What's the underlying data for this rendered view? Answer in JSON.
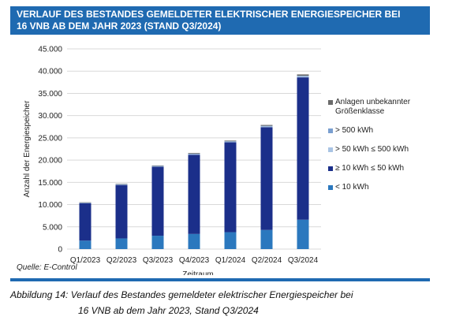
{
  "title_lines": [
    "VERLAUF DES BESTANDES GEMELDETER ELEKTRISCHER ENERGIESPEICHER BEI",
    "16 VNB AB DEM JAHR 2023 (STAND Q3/2024)"
  ],
  "source": "Quelle: E-Control",
  "caption_lines": [
    "Abbildung 14: Verlauf des Bestandes gemeldeter elektrischer Energiespeicher bei",
    "16 VNB ab dem Jahr 2023, Stand Q3/2024"
  ],
  "colors": {
    "title_bg": "#1f6ab1",
    "grid": "#d9d9d9"
  },
  "chart_data": {
    "type": "bar",
    "stacked": true,
    "xlabel": "Zeitraum",
    "ylabel": "Anzahl der Energiespeicher",
    "ylim": [
      0,
      45000
    ],
    "yticks": [
      0,
      5000,
      10000,
      15000,
      20000,
      25000,
      30000,
      35000,
      40000,
      45000
    ],
    "ytick_labels": [
      "0",
      "5.000",
      "10.000",
      "15.000",
      "20.000",
      "25.000",
      "30.000",
      "35.000",
      "40.000",
      "45.000"
    ],
    "categories": [
      "Q1/2023",
      "Q2/2023",
      "Q3/2023",
      "Q4/2023",
      "Q1/2024",
      "Q2/2024",
      "Q3/2024"
    ],
    "grid": true,
    "legend_position": "right",
    "series": [
      {
        "name": "< 10 kWh",
        "color": "#2b78be",
        "values": [
          1900,
          2400,
          3000,
          3400,
          3800,
          4300,
          6600
        ]
      },
      {
        "name": "≥ 10 kWh ≤ 50  kWh",
        "color": "#1b2f8a",
        "values": [
          8400,
          12000,
          15500,
          17800,
          20200,
          23100,
          32000
        ]
      },
      {
        "name": "> 50 kWh ≤ 500 kWh",
        "color": "#a9c4e4",
        "values": [
          100,
          150,
          150,
          200,
          200,
          250,
          300
        ]
      },
      {
        "name": "> 500 kWh",
        "color": "#7a9fd0",
        "values": [
          20,
          30,
          30,
          40,
          40,
          50,
          60
        ]
      },
      {
        "name": "Anlagen unbekannter Größenklasse",
        "color": "#6b6b6b",
        "values": [
          100,
          100,
          100,
          150,
          150,
          200,
          300
        ]
      }
    ],
    "legend_order": [
      "Anlagen unbekannter Größenklasse",
      "> 500 kWh",
      "> 50 kWh ≤ 500 kWh",
      "≥ 10 kWh ≤ 50  kWh",
      "< 10 kWh"
    ]
  }
}
